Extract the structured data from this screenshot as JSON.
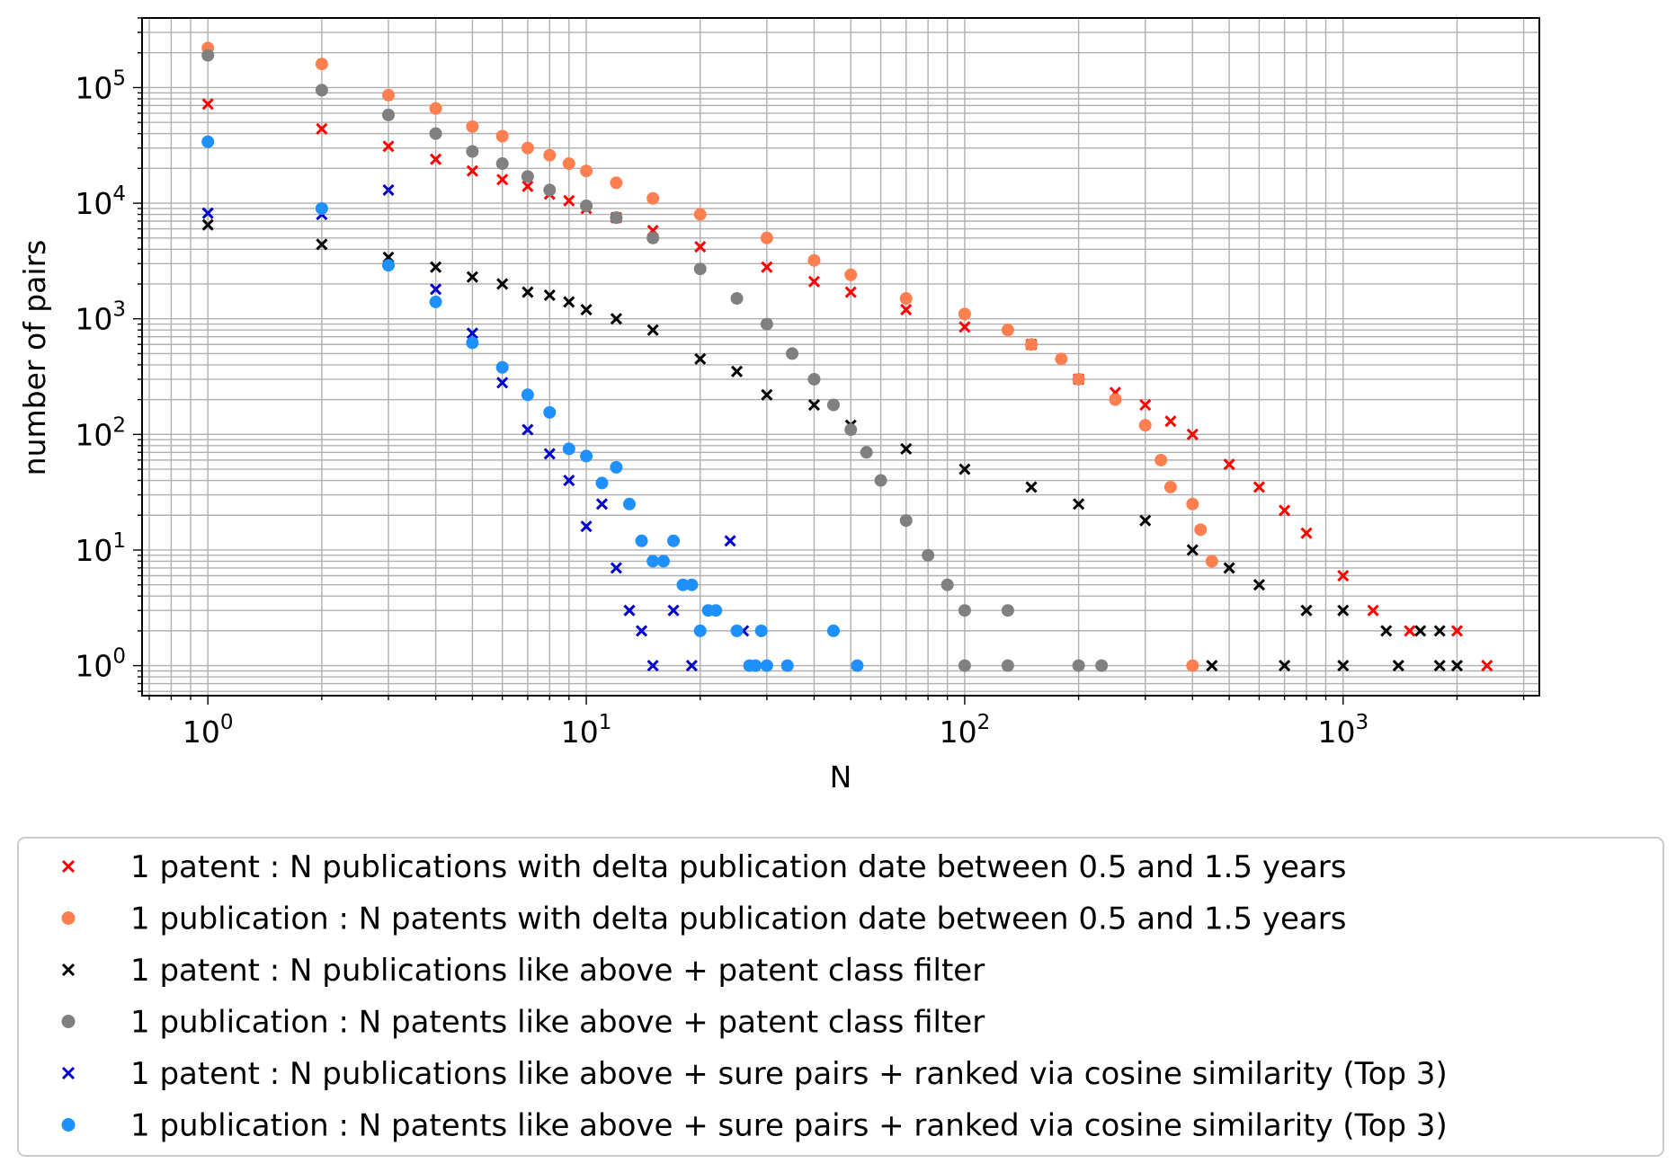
{
  "chart_data": {
    "type": "scatter",
    "title": "",
    "xlabel": "N",
    "ylabel": "number of pairs",
    "xscale": "log",
    "yscale": "log",
    "xlim": [
      0.67,
      3300
    ],
    "ylim": [
      0.55,
      400000
    ],
    "grid": true,
    "legend_position": "bottom",
    "x_ticks": [
      {
        "value": 1,
        "base": "10",
        "exp": "0"
      },
      {
        "value": 10,
        "base": "10",
        "exp": "1"
      },
      {
        "value": 100,
        "base": "10",
        "exp": "2"
      },
      {
        "value": 1000,
        "base": "10",
        "exp": "3"
      }
    ],
    "y_ticks": [
      {
        "value": 1,
        "base": "10",
        "exp": "0"
      },
      {
        "value": 10,
        "base": "10",
        "exp": "1"
      },
      {
        "value": 100,
        "base": "10",
        "exp": "2"
      },
      {
        "value": 1000,
        "base": "10",
        "exp": "3"
      },
      {
        "value": 10000,
        "base": "10",
        "exp": "4"
      },
      {
        "value": 100000,
        "base": "10",
        "exp": "5"
      }
    ],
    "series": [
      {
        "name": "1 patent : N publications with delta publication date between 0.5 and 1.5 years",
        "marker": "x",
        "color": "#ff0000",
        "points": [
          [
            1,
            72000
          ],
          [
            2,
            44000
          ],
          [
            3,
            31000
          ],
          [
            4,
            24000
          ],
          [
            5,
            19000
          ],
          [
            6,
            16000
          ],
          [
            7,
            14000
          ],
          [
            8,
            12000
          ],
          [
            9,
            10500
          ],
          [
            10,
            9000
          ],
          [
            12,
            7500
          ],
          [
            15,
            5800
          ],
          [
            20,
            4200
          ],
          [
            30,
            2800
          ],
          [
            40,
            2100
          ],
          [
            50,
            1700
          ],
          [
            70,
            1200
          ],
          [
            100,
            850
          ],
          [
            150,
            600
          ],
          [
            200,
            300
          ],
          [
            250,
            230
          ],
          [
            300,
            180
          ],
          [
            350,
            130
          ],
          [
            400,
            100
          ],
          [
            500,
            55
          ],
          [
            600,
            35
          ],
          [
            700,
            22
          ],
          [
            800,
            14
          ],
          [
            1000,
            6
          ],
          [
            1200,
            3
          ],
          [
            1500,
            2
          ],
          [
            2000,
            2
          ],
          [
            2400,
            1
          ]
        ]
      },
      {
        "name": "1 publication : N patents with delta publication date between 0.5 and 1.5 years",
        "marker": "o",
        "color": "#ff7f50",
        "points": [
          [
            1,
            220000
          ],
          [
            2,
            160000
          ],
          [
            3,
            86000
          ],
          [
            4,
            66000
          ],
          [
            5,
            46000
          ],
          [
            6,
            38000
          ],
          [
            7,
            30000
          ],
          [
            8,
            26000
          ],
          [
            9,
            22000
          ],
          [
            10,
            19000
          ],
          [
            12,
            15000
          ],
          [
            15,
            11000
          ],
          [
            20,
            8000
          ],
          [
            30,
            5000
          ],
          [
            40,
            3200
          ],
          [
            50,
            2400
          ],
          [
            70,
            1500
          ],
          [
            100,
            1100
          ],
          [
            130,
            800
          ],
          [
            150,
            600
          ],
          [
            180,
            450
          ],
          [
            200,
            300
          ],
          [
            250,
            200
          ],
          [
            300,
            120
          ],
          [
            330,
            60
          ],
          [
            350,
            35
          ],
          [
            400,
            25
          ],
          [
            420,
            15
          ],
          [
            450,
            8
          ],
          [
            400,
            1
          ]
        ]
      },
      {
        "name": "1 patent : N publications like above + patent class filter",
        "marker": "x",
        "color": "#000000",
        "points": [
          [
            1,
            6500
          ],
          [
            2,
            4400
          ],
          [
            3,
            3400
          ],
          [
            4,
            2800
          ],
          [
            5,
            2300
          ],
          [
            6,
            2000
          ],
          [
            7,
            1700
          ],
          [
            8,
            1600
          ],
          [
            9,
            1400
          ],
          [
            10,
            1200
          ],
          [
            12,
            1000
          ],
          [
            15,
            800
          ],
          [
            20,
            450
          ],
          [
            25,
            350
          ],
          [
            30,
            220
          ],
          [
            40,
            180
          ],
          [
            50,
            120
          ],
          [
            70,
            75
          ],
          [
            100,
            50
          ],
          [
            150,
            35
          ],
          [
            200,
            25
          ],
          [
            300,
            18
          ],
          [
            400,
            10
          ],
          [
            500,
            7
          ],
          [
            600,
            5
          ],
          [
            800,
            3
          ],
          [
            1000,
            3
          ],
          [
            1300,
            2
          ],
          [
            1600,
            2
          ],
          [
            1800,
            2
          ],
          [
            450,
            1
          ],
          [
            700,
            1
          ],
          [
            1000,
            1
          ],
          [
            1400,
            1
          ],
          [
            1800,
            1
          ],
          [
            2000,
            1
          ]
        ]
      },
      {
        "name": "1 publication : N patents like above + patent class filter",
        "marker": "o",
        "color": "#808080",
        "points": [
          [
            1,
            190000
          ],
          [
            2,
            95000
          ],
          [
            3,
            58000
          ],
          [
            4,
            40000
          ],
          [
            5,
            28000
          ],
          [
            6,
            22000
          ],
          [
            7,
            17000
          ],
          [
            8,
            13000
          ],
          [
            10,
            9500
          ],
          [
            12,
            7500
          ],
          [
            15,
            5000
          ],
          [
            20,
            2700
          ],
          [
            25,
            1500
          ],
          [
            30,
            900
          ],
          [
            35,
            500
          ],
          [
            40,
            300
          ],
          [
            45,
            180
          ],
          [
            50,
            110
          ],
          [
            55,
            70
          ],
          [
            60,
            40
          ],
          [
            70,
            18
          ],
          [
            80,
            9
          ],
          [
            90,
            5
          ],
          [
            100,
            3
          ],
          [
            130,
            3
          ],
          [
            100,
            1
          ],
          [
            130,
            1
          ],
          [
            200,
            1
          ],
          [
            230,
            1
          ]
        ]
      },
      {
        "name": "1 patent : N publications like above + sure pairs + ranked via cosine similarity (Top 3)",
        "marker": "x",
        "color": "#0000cd",
        "points": [
          [
            1,
            8200
          ],
          [
            2,
            8000
          ],
          [
            3,
            13000
          ],
          [
            4,
            1800
          ],
          [
            5,
            750
          ],
          [
            6,
            280
          ],
          [
            7,
            110
          ],
          [
            8,
            68
          ],
          [
            9,
            40
          ],
          [
            10,
            16
          ],
          [
            11,
            25
          ],
          [
            12,
            7
          ],
          [
            13,
            3
          ],
          [
            14,
            2
          ],
          [
            15,
            1
          ],
          [
            17,
            3
          ],
          [
            19,
            1
          ],
          [
            24,
            12
          ],
          [
            26,
            2
          ]
        ]
      },
      {
        "name": "1 publication : N patents like above + sure pairs + ranked via cosine similarity (Top 3)",
        "marker": "o",
        "color": "#1e90ff",
        "points": [
          [
            1,
            34000
          ],
          [
            2,
            9000
          ],
          [
            3,
            2900
          ],
          [
            4,
            1400
          ],
          [
            5,
            620
          ],
          [
            6,
            380
          ],
          [
            7,
            220
          ],
          [
            8,
            155
          ],
          [
            9,
            75
          ],
          [
            10,
            65
          ],
          [
            11,
            38
          ],
          [
            12,
            52
          ],
          [
            13,
            25
          ],
          [
            14,
            12
          ],
          [
            15,
            8
          ],
          [
            16,
            8
          ],
          [
            17,
            12
          ],
          [
            18,
            5
          ],
          [
            19,
            5
          ],
          [
            20,
            2
          ],
          [
            21,
            3
          ],
          [
            22,
            3
          ],
          [
            25,
            2
          ],
          [
            27,
            1
          ],
          [
            28,
            1
          ],
          [
            29,
            2
          ],
          [
            30,
            1
          ],
          [
            34,
            1
          ],
          [
            45,
            2
          ],
          [
            52,
            1
          ]
        ]
      }
    ]
  }
}
